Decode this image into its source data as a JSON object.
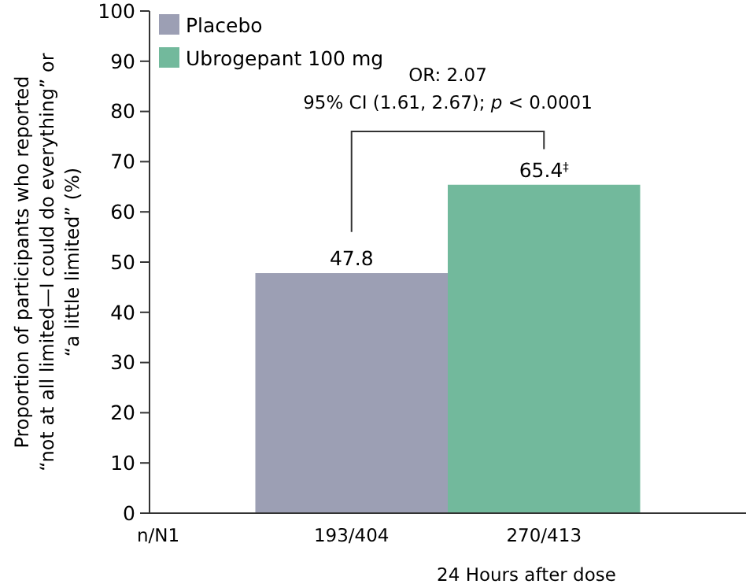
{
  "chart_data": {
    "type": "bar",
    "xlabel": "24 Hours after dose",
    "ylabel": "Proportion of participants who reported\n“not at all limited—I could do everything” or\n“a little limited” (%)",
    "categories": [
      null
    ],
    "series": [
      {
        "name": "Placebo",
        "color": "#9c9fb4",
        "values": [
          47.8
        ],
        "value_labels": [
          "47.8"
        ]
      },
      {
        "name": "Ubrogepant 100 mg",
        "color": "#72b99c",
        "values": [
          65.4
        ],
        "value_labels": [
          "65.4$^{‡}$"
        ]
      }
    ],
    "ylim": [
      0,
      100
    ],
    "yticks": [
      0,
      10,
      20,
      30,
      40,
      50,
      60,
      70,
      80,
      90,
      100
    ],
    "grid": false,
    "legend": "top left",
    "annotations": [
      "OR: 2.07",
      "95% CI (1.61, 2.67); p < 0.0001",
      "n/N1",
      "193/404",
      "270/413"
    ]
  }
}
